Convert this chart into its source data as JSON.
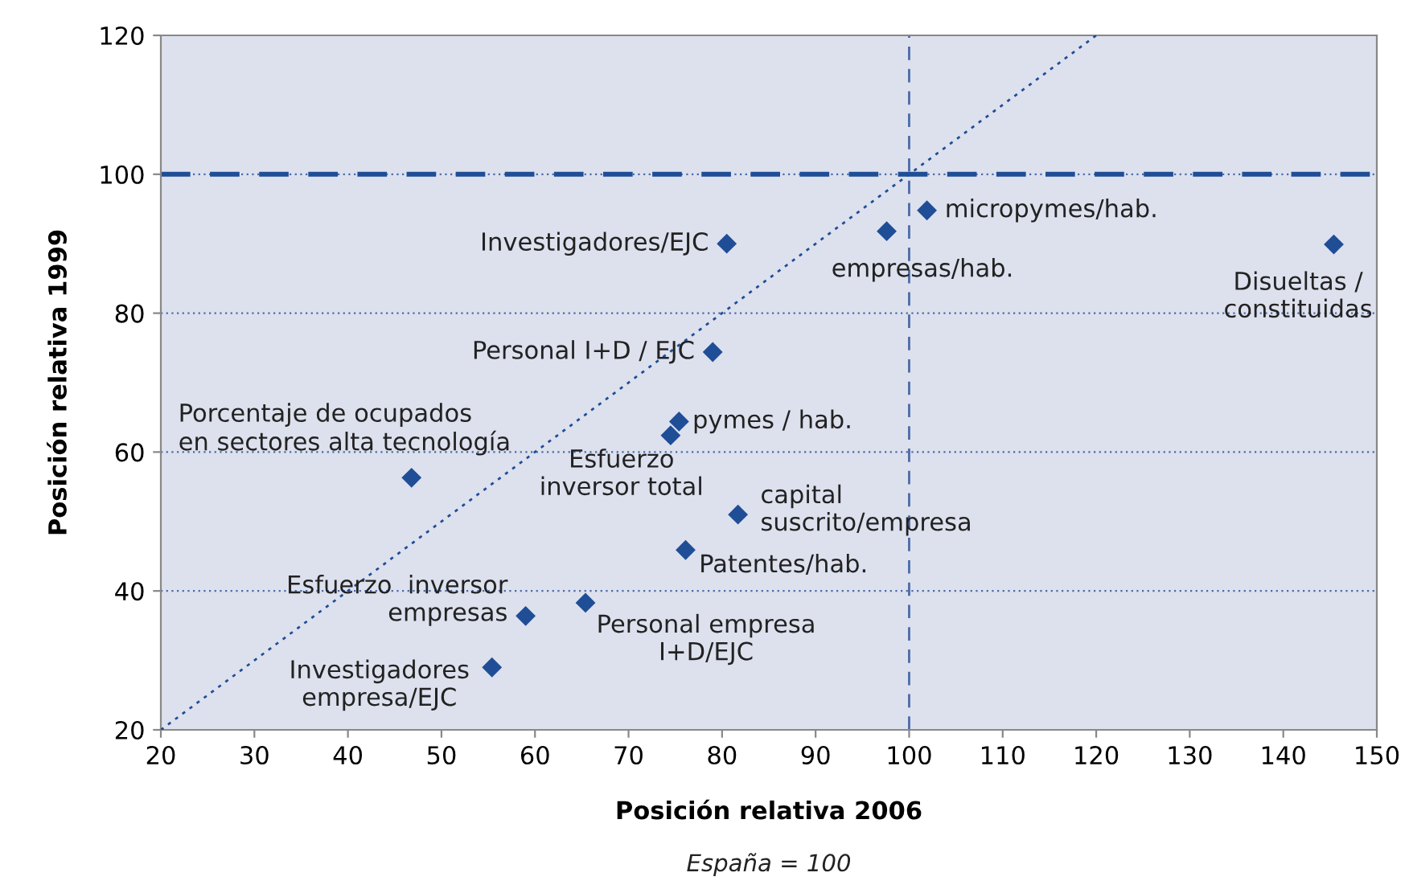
{
  "chart_data": {
    "type": "scatter",
    "xlabel": "Posición relativa 2006",
    "ylabel": "Posición relativa 1999",
    "x": [
      80.5,
      97.6,
      101.9,
      145.4,
      79.0,
      75.4,
      74.5,
      46.8,
      81.7,
      76.1,
      65.4,
      59.0,
      55.4
    ],
    "series": [
      {
        "color": "#1f4e96",
        "values": [
          90,
          91.8,
          94.8,
          89.9,
          74.4,
          64.4,
          62.4,
          56.3,
          51.0,
          45.9,
          38.3,
          36.4,
          29.0
        ],
        "marker": "diamond"
      },
      {
        "type": "line",
        "x": [
          20,
          120
        ],
        "values": [
          20,
          120
        ],
        "color": "#1f4e96",
        "line_style": "dotted",
        "marker": "none"
      }
    ],
    "xlim": [
      20,
      150
    ],
    "ylim": [
      20,
      120
    ],
    "xticks": [
      20,
      30,
      40,
      50,
      60,
      70,
      80,
      90,
      100,
      110,
      120,
      130,
      140,
      150
    ],
    "yticks": [
      20,
      40,
      60,
      80,
      100,
      120
    ],
    "grid": "y",
    "legend": false,
    "ref_lines": [
      {
        "axis": "y",
        "value": 100,
        "color": "#1f4e96",
        "line_style": "dashed"
      },
      {
        "axis": "x",
        "value": 100,
        "color": "#4a6aa8",
        "line_style": "dashed"
      }
    ],
    "annotations": [
      {
        "text": "Investigadores/EJC",
        "x": 80.5,
        "y": 90
      },
      {
        "text": "empresas/hab.",
        "x": 97.6,
        "y": 91.8
      },
      {
        "text": "micropymes/hab.",
        "x": 101.9,
        "y": 94.8
      },
      {
        "text": "Disueltas /\nconstituidas",
        "x": 145.4,
        "y": 89.9
      },
      {
        "text": "Personal I+D / EJC",
        "x": 79.0,
        "y": 74.4
      },
      {
        "text": "pymes / hab.",
        "x": 75.4,
        "y": 64.4
      },
      {
        "text": "Esfuerzo\ninversor total",
        "x": 74.5,
        "y": 62.4
      },
      {
        "text": "Porcentaje de ocupados\nen sectores alta tecnología",
        "x": 46.8,
        "y": 56.3
      },
      {
        "text": "capital\nsuscrito/empresa",
        "x": 81.7,
        "y": 51.0
      },
      {
        "text": "Patentes/hab.",
        "x": 76.1,
        "y": 45.9
      },
      {
        "text": "Personal empresa\nI+D/EJC",
        "x": 65.4,
        "y": 38.3
      },
      {
        "text": "Esfuerzo  inversor\nempresas",
        "x": 59.0,
        "y": 36.4
      },
      {
        "text": "Investigadores\nempresa/EJC",
        "x": 55.4,
        "y": 29.0
      },
      "España = 100"
    ]
  }
}
